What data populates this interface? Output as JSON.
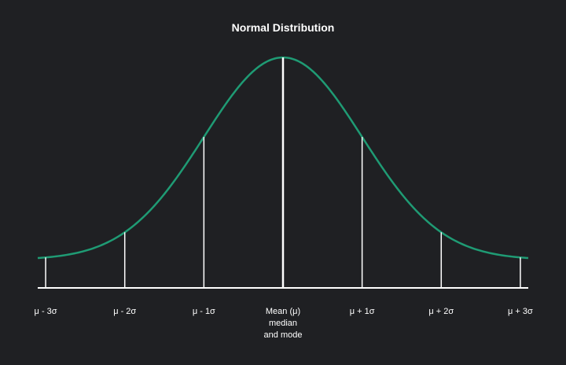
{
  "chart_data": {
    "type": "line",
    "title": "Normal Distribution",
    "x_range": [
      -3.1,
      3.1
    ],
    "y_range": [
      0,
      0.4
    ],
    "curve": {
      "mean": 0,
      "std_dev": 1,
      "color": "#1f9b74"
    },
    "markers": [
      {
        "x": -3,
        "label": [
          "μ - 3σ"
        ]
      },
      {
        "x": -2,
        "label": [
          "μ - 2σ"
        ]
      },
      {
        "x": -1,
        "label": [
          "μ - 1σ"
        ]
      },
      {
        "x": 0,
        "label": [
          "Mean (μ)",
          "median",
          "and mode"
        ]
      },
      {
        "x": 1,
        "label": [
          "μ + 1σ"
        ]
      },
      {
        "x": 2,
        "label": [
          "μ + 2σ"
        ]
      },
      {
        "x": 3,
        "label": [
          "μ + 3σ"
        ]
      }
    ],
    "grid": false,
    "legend": "none"
  },
  "colors": {
    "background": "#1f2023",
    "axis": "#ffffff",
    "text": "#ffffff"
  }
}
